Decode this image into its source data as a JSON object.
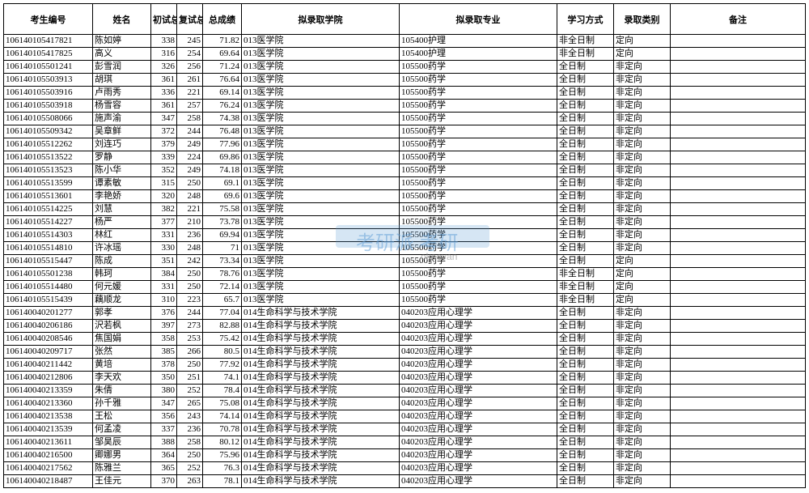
{
  "headers": [
    "考生编号",
    "姓名",
    "初试总成绩",
    "复试总成绩",
    "总成绩",
    "拟录取学院",
    "拟录取专业",
    "学习方式",
    "录取类别",
    "备注"
  ],
  "watermark": {
    "main": "考研派 考研",
    "sub": "okaoyan"
  },
  "rows": [
    [
      "106140105417821",
      "陈如婷",
      "338",
      "245",
      "71.82",
      "013医学院",
      "105400护理",
      "非全日制",
      "定向",
      ""
    ],
    [
      "106140105417825",
      "高义",
      "316",
      "254",
      "69.64",
      "013医学院",
      "105400护理",
      "非全日制",
      "定向",
      ""
    ],
    [
      "106140105501241",
      "彭雪润",
      "326",
      "256",
      "71.24",
      "013医学院",
      "105500药学",
      "全日制",
      "非定向",
      ""
    ],
    [
      "106140105503913",
      "胡琪",
      "361",
      "261",
      "76.64",
      "013医学院",
      "105500药学",
      "全日制",
      "非定向",
      ""
    ],
    [
      "106140105503916",
      "卢雨秀",
      "336",
      "221",
      "69.14",
      "013医学院",
      "105500药学",
      "全日制",
      "非定向",
      ""
    ],
    [
      "106140105503918",
      "杨雪容",
      "361",
      "257",
      "76.24",
      "013医学院",
      "105500药学",
      "全日制",
      "非定向",
      ""
    ],
    [
      "106140105508066",
      "施声渝",
      "347",
      "258",
      "74.38",
      "013医学院",
      "105500药学",
      "全日制",
      "非定向",
      ""
    ],
    [
      "106140105509342",
      "吴章鲜",
      "372",
      "244",
      "76.48",
      "013医学院",
      "105500药学",
      "全日制",
      "非定向",
      ""
    ],
    [
      "106140105512262",
      "刘连巧",
      "379",
      "249",
      "77.96",
      "013医学院",
      "105500药学",
      "全日制",
      "非定向",
      ""
    ],
    [
      "106140105513522",
      "罗静",
      "339",
      "224",
      "69.86",
      "013医学院",
      "105500药学",
      "全日制",
      "非定向",
      ""
    ],
    [
      "106140105513523",
      "陈小华",
      "352",
      "249",
      "74.18",
      "013医学院",
      "105500药学",
      "全日制",
      "非定向",
      ""
    ],
    [
      "106140105513599",
      "谭素敏",
      "315",
      "250",
      "69.1",
      "013医学院",
      "105500药学",
      "全日制",
      "非定向",
      ""
    ],
    [
      "106140105513601",
      "李艳娇",
      "320",
      "248",
      "69.6",
      "013医学院",
      "105500药学",
      "全日制",
      "非定向",
      ""
    ],
    [
      "106140105514225",
      "刘慧",
      "382",
      "221",
      "75.58",
      "013医学院",
      "105500药学",
      "全日制",
      "非定向",
      ""
    ],
    [
      "106140105514227",
      "杨严",
      "377",
      "210",
      "73.78",
      "013医学院",
      "105500药学",
      "全日制",
      "非定向",
      ""
    ],
    [
      "106140105514303",
      "林红",
      "331",
      "236",
      "69.94",
      "013医学院",
      "105500药学",
      "全日制",
      "非定向",
      ""
    ],
    [
      "106140105514810",
      "许冰瑶",
      "330",
      "248",
      "71",
      "013医学院",
      "105500药学",
      "全日制",
      "非定向",
      ""
    ],
    [
      "106140105515447",
      "陈成",
      "351",
      "242",
      "73.34",
      "013医学院",
      "105500药学",
      "全日制",
      "定向",
      ""
    ],
    [
      "106140105501238",
      "韩珂",
      "384",
      "250",
      "78.76",
      "013医学院",
      "105500药学",
      "非全日制",
      "定向",
      ""
    ],
    [
      "106140105514480",
      "何元媛",
      "331",
      "250",
      "72.14",
      "013医学院",
      "105500药学",
      "非全日制",
      "定向",
      ""
    ],
    [
      "106140105515439",
      "藕顺龙",
      "310",
      "223",
      "65.7",
      "013医学院",
      "105500药学",
      "非全日制",
      "定向",
      ""
    ],
    [
      "106140040201277",
      "郭孝",
      "376",
      "244",
      "77.04",
      "014生命科学与技术学院",
      "040203应用心理学",
      "全日制",
      "非定向",
      ""
    ],
    [
      "106140040206186",
      "沢若枫",
      "397",
      "273",
      "82.88",
      "014生命科学与技术学院",
      "040203应用心理学",
      "全日制",
      "非定向",
      ""
    ],
    [
      "106140040208546",
      "焦国娟",
      "358",
      "253",
      "75.42",
      "014生命科学与技术学院",
      "040203应用心理学",
      "全日制",
      "非定向",
      ""
    ],
    [
      "106140040209717",
      "张然",
      "385",
      "266",
      "80.5",
      "014生命科学与技术学院",
      "040203应用心理学",
      "全日制",
      "非定向",
      ""
    ],
    [
      "106140040211442",
      "黄培",
      "378",
      "250",
      "77.92",
      "014生命科学与技术学院",
      "040203应用心理学",
      "全日制",
      "非定向",
      ""
    ],
    [
      "106140040212806",
      "李天欢",
      "350",
      "251",
      "74.1",
      "014生命科学与技术学院",
      "040203应用心理学",
      "全日制",
      "非定向",
      ""
    ],
    [
      "106140040213359",
      "朱倩",
      "380",
      "252",
      "78.4",
      "014生命科学与技术学院",
      "040203应用心理学",
      "全日制",
      "非定向",
      ""
    ],
    [
      "106140040213360",
      "孙千雅",
      "347",
      "265",
      "75.08",
      "014生命科学与技术学院",
      "040203应用心理学",
      "全日制",
      "非定向",
      ""
    ],
    [
      "106140040213538",
      "王松",
      "356",
      "243",
      "74.14",
      "014生命科学与技术学院",
      "040203应用心理学",
      "全日制",
      "非定向",
      ""
    ],
    [
      "106140040213539",
      "何孟凌",
      "337",
      "236",
      "70.78",
      "014生命科学与技术学院",
      "040203应用心理学",
      "全日制",
      "非定向",
      ""
    ],
    [
      "106140040213611",
      "邹昊辰",
      "388",
      "258",
      "80.12",
      "014生命科学与技术学院",
      "040203应用心理学",
      "全日制",
      "非定向",
      ""
    ],
    [
      "106140040216500",
      "卿娜男",
      "364",
      "250",
      "75.96",
      "014生命科学与技术学院",
      "040203应用心理学",
      "全日制",
      "非定向",
      ""
    ],
    [
      "106140040217562",
      "陈雅兰",
      "365",
      "252",
      "76.3",
      "014生命科学与技术学院",
      "040203应用心理学",
      "全日制",
      "非定向",
      ""
    ],
    [
      "106140040218487",
      "王佳元",
      "370",
      "263",
      "78.1",
      "014生命科学与技术学院",
      "040203应用心理学",
      "全日制",
      "非定向",
      ""
    ]
  ]
}
